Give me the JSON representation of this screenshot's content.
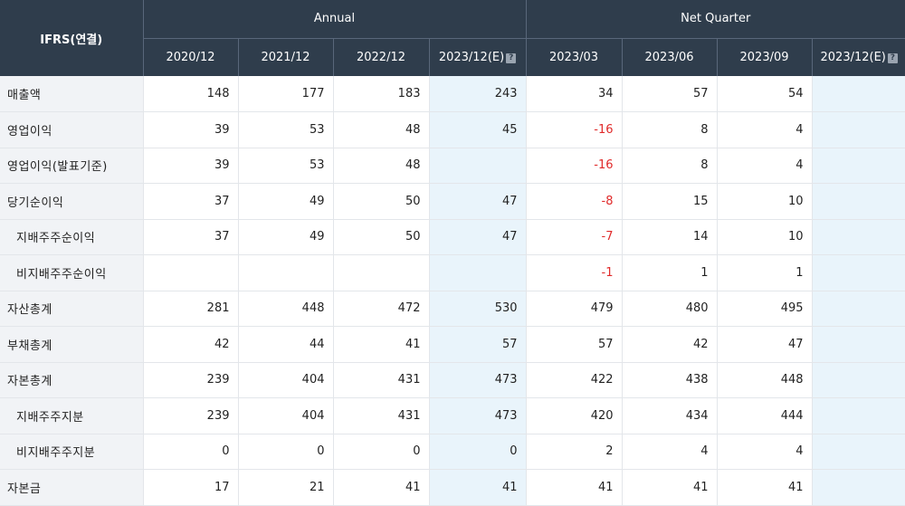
{
  "table": {
    "corner_label": "IFRS(연결)",
    "groups": {
      "annual": "Annual",
      "quarter": "Net Quarter"
    },
    "periods": [
      {
        "label": "2020/12",
        "est": false
      },
      {
        "label": "2021/12",
        "est": false
      },
      {
        "label": "2022/12",
        "est": false
      },
      {
        "label": "2023/12(E)",
        "est": true
      },
      {
        "label": "2023/03",
        "est": false
      },
      {
        "label": "2023/06",
        "est": false
      },
      {
        "label": "2023/09",
        "est": false
      },
      {
        "label": "2023/12(E)",
        "est": true
      }
    ],
    "rows": [
      {
        "label": "매출액",
        "sub": false,
        "values": [
          "148",
          "177",
          "183",
          "243",
          "34",
          "57",
          "54",
          ""
        ]
      },
      {
        "label": "영업이익",
        "sub": false,
        "values": [
          "39",
          "53",
          "48",
          "45",
          "-16",
          "8",
          "4",
          ""
        ]
      },
      {
        "label": "영업이익(발표기준)",
        "sub": false,
        "values": [
          "39",
          "53",
          "48",
          "",
          "-16",
          "8",
          "4",
          ""
        ]
      },
      {
        "label": "당기순이익",
        "sub": false,
        "values": [
          "37",
          "49",
          "50",
          "47",
          "-8",
          "15",
          "10",
          ""
        ]
      },
      {
        "label": "지배주주순이익",
        "sub": true,
        "values": [
          "37",
          "49",
          "50",
          "47",
          "-7",
          "14",
          "10",
          ""
        ]
      },
      {
        "label": "비지배주주순이익",
        "sub": true,
        "values": [
          "",
          "",
          "",
          "",
          "-1",
          "1",
          "1",
          ""
        ]
      },
      {
        "label": "자산총계",
        "sub": false,
        "values": [
          "281",
          "448",
          "472",
          "530",
          "479",
          "480",
          "495",
          ""
        ]
      },
      {
        "label": "부채총계",
        "sub": false,
        "values": [
          "42",
          "44",
          "41",
          "57",
          "57",
          "42",
          "47",
          ""
        ]
      },
      {
        "label": "자본총계",
        "sub": false,
        "values": [
          "239",
          "404",
          "431",
          "473",
          "422",
          "438",
          "448",
          ""
        ]
      },
      {
        "label": "지배주주지분",
        "sub": true,
        "values": [
          "239",
          "404",
          "431",
          "473",
          "420",
          "434",
          "444",
          ""
        ]
      },
      {
        "label": "비지배주주지분",
        "sub": true,
        "values": [
          "0",
          "0",
          "0",
          "0",
          "2",
          "4",
          "4",
          ""
        ]
      },
      {
        "label": "자본금",
        "sub": false,
        "values": [
          "17",
          "21",
          "41",
          "41",
          "41",
          "41",
          "41",
          ""
        ]
      }
    ]
  },
  "colors": {
    "header_bg": "#2f3d4c",
    "label_bg": "#f1f3f6",
    "estimate_bg": "#e9f4fb",
    "negative": "#e02a2a"
  }
}
